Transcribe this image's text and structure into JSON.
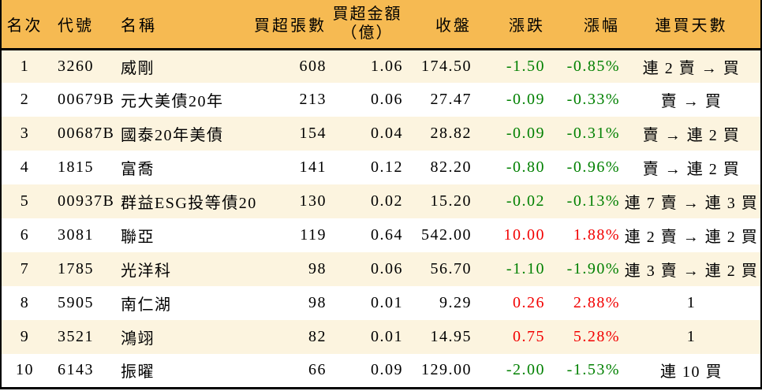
{
  "table": {
    "columns": [
      {
        "key": "rank",
        "label": "名次"
      },
      {
        "key": "code",
        "label": "代號"
      },
      {
        "key": "name",
        "label": "名稱"
      },
      {
        "key": "volume",
        "label": "買超張數"
      },
      {
        "key": "amount",
        "label": "買超金額",
        "label2": "（億）"
      },
      {
        "key": "close",
        "label": "收盤"
      },
      {
        "key": "change",
        "label": "漲跌"
      },
      {
        "key": "change_pct",
        "label": "漲幅"
      },
      {
        "key": "streak",
        "label": "連買天數"
      }
    ],
    "rows": [
      {
        "rank": "1",
        "code": "3260",
        "name": "威剛",
        "volume": "608",
        "amount": "1.06",
        "close": "174.50",
        "change": "-1.50",
        "change_pct": "-0.85%",
        "streak": "連 2 賣 → 買",
        "direction": "down"
      },
      {
        "rank": "2",
        "code": "00679B",
        "name": "元大美債20年",
        "volume": "213",
        "amount": "0.06",
        "close": "27.47",
        "change": "-0.09",
        "change_pct": "-0.33%",
        "streak": "賣 → 買",
        "direction": "down"
      },
      {
        "rank": "3",
        "code": "00687B",
        "name": "國泰20年美債",
        "volume": "154",
        "amount": "0.04",
        "close": "28.82",
        "change": "-0.09",
        "change_pct": "-0.31%",
        "streak": "賣 → 連 2 買",
        "direction": "down"
      },
      {
        "rank": "4",
        "code": "1815",
        "name": "富喬",
        "volume": "141",
        "amount": "0.12",
        "close": "82.20",
        "change": "-0.80",
        "change_pct": "-0.96%",
        "streak": "賣 → 連 2 買",
        "direction": "down"
      },
      {
        "rank": "5",
        "code": "00937B",
        "name": "群益ESG投等債20",
        "volume": "130",
        "amount": "0.02",
        "close": "15.20",
        "change": "-0.02",
        "change_pct": "-0.13%",
        "streak": "連 7 賣 → 連 3 買",
        "direction": "down"
      },
      {
        "rank": "6",
        "code": "3081",
        "name": "聯亞",
        "volume": "119",
        "amount": "0.64",
        "close": "542.00",
        "change": "10.00",
        "change_pct": "1.88%",
        "streak": "連 2 賣 → 連 2 買",
        "direction": "up"
      },
      {
        "rank": "7",
        "code": "1785",
        "name": "光洋科",
        "volume": "98",
        "amount": "0.06",
        "close": "56.70",
        "change": "-1.10",
        "change_pct": "-1.90%",
        "streak": "連 3 賣 → 連 2 買",
        "direction": "down"
      },
      {
        "rank": "8",
        "code": "5905",
        "name": "南仁湖",
        "volume": "98",
        "amount": "0.01",
        "close": "9.29",
        "change": "0.26",
        "change_pct": "2.88%",
        "streak": "1",
        "direction": "up"
      },
      {
        "rank": "9",
        "code": "3521",
        "name": "鴻翊",
        "volume": "82",
        "amount": "0.01",
        "close": "14.95",
        "change": "0.75",
        "change_pct": "5.28%",
        "streak": "1",
        "direction": "up"
      },
      {
        "rank": "10",
        "code": "6143",
        "name": "振曜",
        "volume": "66",
        "amount": "0.09",
        "close": "129.00",
        "change": "-2.00",
        "change_pct": "-1.53%",
        "streak": "連 10 買",
        "direction": "down"
      }
    ]
  },
  "colors": {
    "header_bg": "#F6BA52",
    "row_alt_bg": "#FCF4DF",
    "row_bg": "#FFFFFF",
    "up": "#F20000",
    "down": "#008000",
    "border": "#000000",
    "text": "#000000"
  }
}
